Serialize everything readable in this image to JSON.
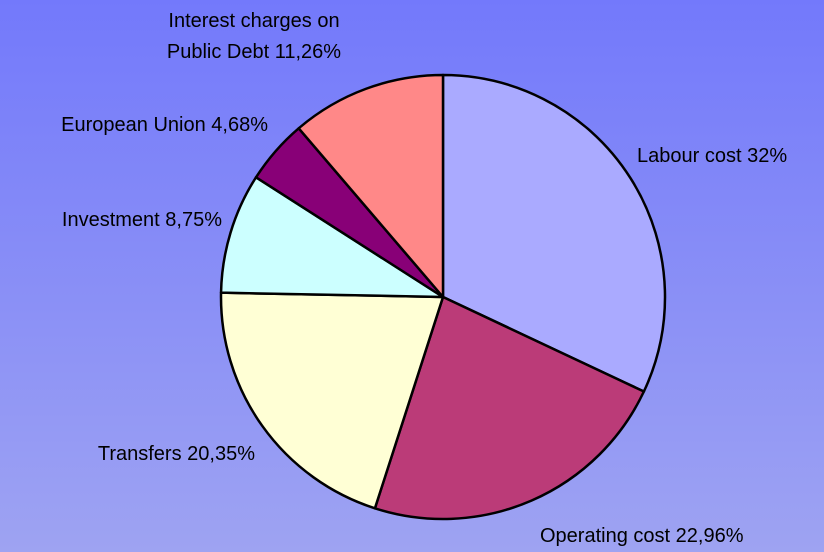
{
  "chart_data": {
    "type": "pie",
    "categories": [
      "Labour cost",
      "Operating cost",
      "Transfers",
      "Investment",
      "European Union",
      "Interest charges on Public Debt"
    ],
    "values": [
      32,
      22.96,
      20.35,
      8.75,
      4.68,
      11.26
    ],
    "value_labels": [
      "32%",
      "22,96%",
      "20,35%",
      "8,75%",
      "4,68%",
      "11,26%"
    ],
    "colors": [
      "#aaaaff",
      "#bb3b78",
      "#ffffd5",
      "#ccffff",
      "#880077",
      "#ff8888"
    ]
  }
}
